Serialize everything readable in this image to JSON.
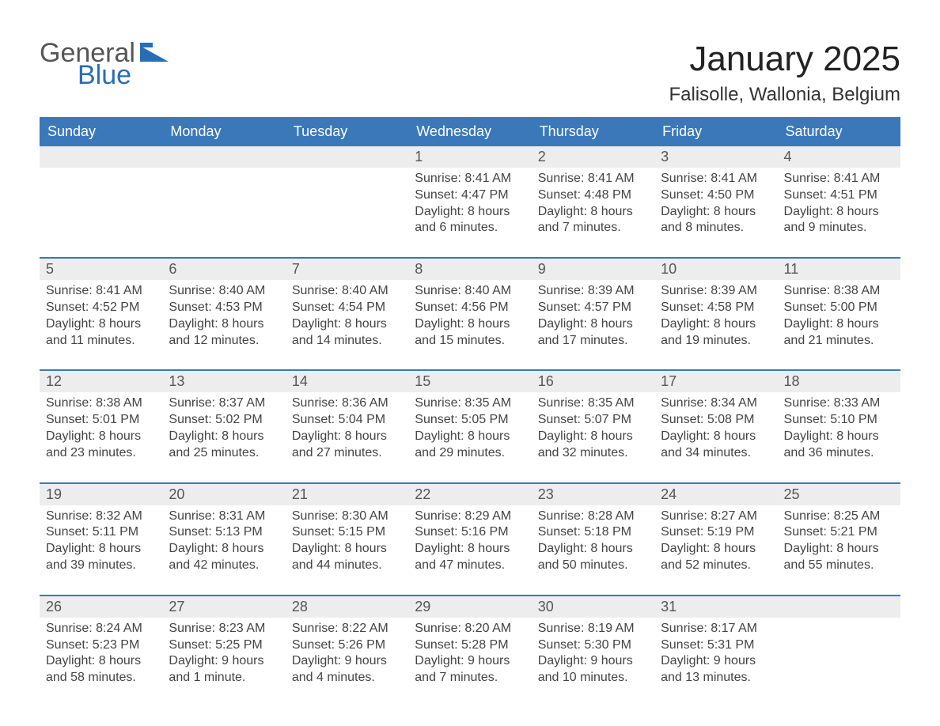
{
  "brand": {
    "general": "General",
    "blue": "Blue",
    "logo_fill": "#2a6db5"
  },
  "title": "January 2025",
  "location": "Falisolle, Wallonia, Belgium",
  "colors": {
    "header_bg": "#3a78ba",
    "header_text": "#ffffff",
    "daynum_bg": "#ededed",
    "body_text": "#444444",
    "week_border": "#3a78ba",
    "background": "#ffffff"
  },
  "layout": {
    "columns": 7,
    "weeks": 5,
    "week_start": "Sunday"
  },
  "weekdays": [
    "Sunday",
    "Monday",
    "Tuesday",
    "Wednesday",
    "Thursday",
    "Friday",
    "Saturday"
  ],
  "weeks": [
    [
      {
        "day": "",
        "sunrise": "",
        "sunset": "",
        "daylight": ""
      },
      {
        "day": "",
        "sunrise": "",
        "sunset": "",
        "daylight": ""
      },
      {
        "day": "",
        "sunrise": "",
        "sunset": "",
        "daylight": ""
      },
      {
        "day": "1",
        "sunrise": "Sunrise: 8:41 AM",
        "sunset": "Sunset: 4:47 PM",
        "daylight": "Daylight: 8 hours and 6 minutes."
      },
      {
        "day": "2",
        "sunrise": "Sunrise: 8:41 AM",
        "sunset": "Sunset: 4:48 PM",
        "daylight": "Daylight: 8 hours and 7 minutes."
      },
      {
        "day": "3",
        "sunrise": "Sunrise: 8:41 AM",
        "sunset": "Sunset: 4:50 PM",
        "daylight": "Daylight: 8 hours and 8 minutes."
      },
      {
        "day": "4",
        "sunrise": "Sunrise: 8:41 AM",
        "sunset": "Sunset: 4:51 PM",
        "daylight": "Daylight: 8 hours and 9 minutes."
      }
    ],
    [
      {
        "day": "5",
        "sunrise": "Sunrise: 8:41 AM",
        "sunset": "Sunset: 4:52 PM",
        "daylight": "Daylight: 8 hours and 11 minutes."
      },
      {
        "day": "6",
        "sunrise": "Sunrise: 8:40 AM",
        "sunset": "Sunset: 4:53 PM",
        "daylight": "Daylight: 8 hours and 12 minutes."
      },
      {
        "day": "7",
        "sunrise": "Sunrise: 8:40 AM",
        "sunset": "Sunset: 4:54 PM",
        "daylight": "Daylight: 8 hours and 14 minutes."
      },
      {
        "day": "8",
        "sunrise": "Sunrise: 8:40 AM",
        "sunset": "Sunset: 4:56 PM",
        "daylight": "Daylight: 8 hours and 15 minutes."
      },
      {
        "day": "9",
        "sunrise": "Sunrise: 8:39 AM",
        "sunset": "Sunset: 4:57 PM",
        "daylight": "Daylight: 8 hours and 17 minutes."
      },
      {
        "day": "10",
        "sunrise": "Sunrise: 8:39 AM",
        "sunset": "Sunset: 4:58 PM",
        "daylight": "Daylight: 8 hours and 19 minutes."
      },
      {
        "day": "11",
        "sunrise": "Sunrise: 8:38 AM",
        "sunset": "Sunset: 5:00 PM",
        "daylight": "Daylight: 8 hours and 21 minutes."
      }
    ],
    [
      {
        "day": "12",
        "sunrise": "Sunrise: 8:38 AM",
        "sunset": "Sunset: 5:01 PM",
        "daylight": "Daylight: 8 hours and 23 minutes."
      },
      {
        "day": "13",
        "sunrise": "Sunrise: 8:37 AM",
        "sunset": "Sunset: 5:02 PM",
        "daylight": "Daylight: 8 hours and 25 minutes."
      },
      {
        "day": "14",
        "sunrise": "Sunrise: 8:36 AM",
        "sunset": "Sunset: 5:04 PM",
        "daylight": "Daylight: 8 hours and 27 minutes."
      },
      {
        "day": "15",
        "sunrise": "Sunrise: 8:35 AM",
        "sunset": "Sunset: 5:05 PM",
        "daylight": "Daylight: 8 hours and 29 minutes."
      },
      {
        "day": "16",
        "sunrise": "Sunrise: 8:35 AM",
        "sunset": "Sunset: 5:07 PM",
        "daylight": "Daylight: 8 hours and 32 minutes."
      },
      {
        "day": "17",
        "sunrise": "Sunrise: 8:34 AM",
        "sunset": "Sunset: 5:08 PM",
        "daylight": "Daylight: 8 hours and 34 minutes."
      },
      {
        "day": "18",
        "sunrise": "Sunrise: 8:33 AM",
        "sunset": "Sunset: 5:10 PM",
        "daylight": "Daylight: 8 hours and 36 minutes."
      }
    ],
    [
      {
        "day": "19",
        "sunrise": "Sunrise: 8:32 AM",
        "sunset": "Sunset: 5:11 PM",
        "daylight": "Daylight: 8 hours and 39 minutes."
      },
      {
        "day": "20",
        "sunrise": "Sunrise: 8:31 AM",
        "sunset": "Sunset: 5:13 PM",
        "daylight": "Daylight: 8 hours and 42 minutes."
      },
      {
        "day": "21",
        "sunrise": "Sunrise: 8:30 AM",
        "sunset": "Sunset: 5:15 PM",
        "daylight": "Daylight: 8 hours and 44 minutes."
      },
      {
        "day": "22",
        "sunrise": "Sunrise: 8:29 AM",
        "sunset": "Sunset: 5:16 PM",
        "daylight": "Daylight: 8 hours and 47 minutes."
      },
      {
        "day": "23",
        "sunrise": "Sunrise: 8:28 AM",
        "sunset": "Sunset: 5:18 PM",
        "daylight": "Daylight: 8 hours and 50 minutes."
      },
      {
        "day": "24",
        "sunrise": "Sunrise: 8:27 AM",
        "sunset": "Sunset: 5:19 PM",
        "daylight": "Daylight: 8 hours and 52 minutes."
      },
      {
        "day": "25",
        "sunrise": "Sunrise: 8:25 AM",
        "sunset": "Sunset: 5:21 PM",
        "daylight": "Daylight: 8 hours and 55 minutes."
      }
    ],
    [
      {
        "day": "26",
        "sunrise": "Sunrise: 8:24 AM",
        "sunset": "Sunset: 5:23 PM",
        "daylight": "Daylight: 8 hours and 58 minutes."
      },
      {
        "day": "27",
        "sunrise": "Sunrise: 8:23 AM",
        "sunset": "Sunset: 5:25 PM",
        "daylight": "Daylight: 9 hours and 1 minute."
      },
      {
        "day": "28",
        "sunrise": "Sunrise: 8:22 AM",
        "sunset": "Sunset: 5:26 PM",
        "daylight": "Daylight: 9 hours and 4 minutes."
      },
      {
        "day": "29",
        "sunrise": "Sunrise: 8:20 AM",
        "sunset": "Sunset: 5:28 PM",
        "daylight": "Daylight: 9 hours and 7 minutes."
      },
      {
        "day": "30",
        "sunrise": "Sunrise: 8:19 AM",
        "sunset": "Sunset: 5:30 PM",
        "daylight": "Daylight: 9 hours and 10 minutes."
      },
      {
        "day": "31",
        "sunrise": "Sunrise: 8:17 AM",
        "sunset": "Sunset: 5:31 PM",
        "daylight": "Daylight: 9 hours and 13 minutes."
      },
      {
        "day": "",
        "sunrise": "",
        "sunset": "",
        "daylight": ""
      }
    ]
  ]
}
